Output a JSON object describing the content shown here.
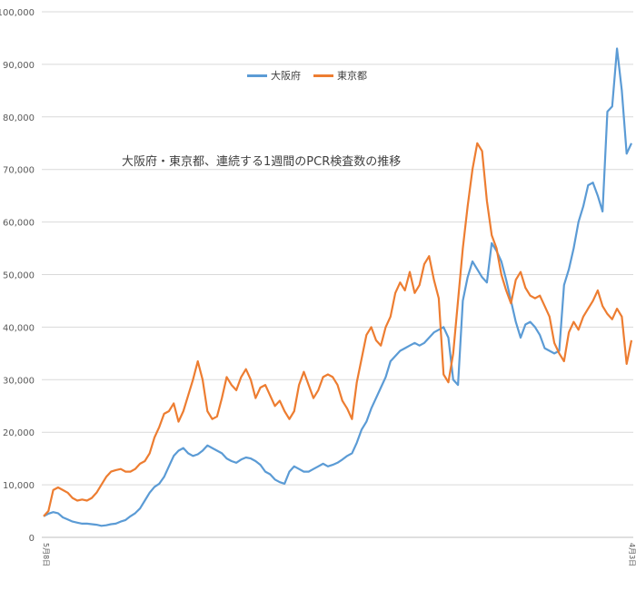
{
  "chart_data": {
    "type": "line",
    "title": "大阪府・東京都、連続する1週間のPCR検査数の推移",
    "xlabel": "",
    "ylabel": "",
    "ylim": [
      0,
      100000
    ],
    "y_ticks": [
      "0",
      "10,000",
      "20,000",
      "30,000",
      "40,000",
      "50,000",
      "60,000",
      "70,000",
      "80,000",
      "90,000",
      "100,000"
    ],
    "x_range": [
      "5月8日",
      "4月3日"
    ],
    "legend": "top-center",
    "grid": true,
    "series": [
      {
        "name": "大阪府",
        "color": "#5B9BD5",
        "values": [
          4000,
          4500,
          4800,
          4600,
          3800,
          3400,
          3000,
          2800,
          2600,
          2600,
          2500,
          2400,
          2200,
          2300,
          2500,
          2600,
          3000,
          3300,
          4000,
          4600,
          5500,
          7000,
          8500,
          9600,
          10200,
          11500,
          13500,
          15500,
          16500,
          17000,
          16000,
          15500,
          15800,
          16500,
          17500,
          17000,
          16500,
          16000,
          15000,
          14500,
          14200,
          14800,
          15200,
          15000,
          14500,
          13800,
          12500,
          12000,
          11000,
          10500,
          10200,
          12500,
          13500,
          13000,
          12500,
          12500,
          13000,
          13500,
          14000,
          13500,
          13800,
          14200,
          14800,
          15500,
          16000,
          18000,
          20500,
          22000,
          24500,
          26500,
          28500,
          30500,
          33500,
          34500,
          35500,
          36000,
          36500,
          37000,
          36500,
          37000,
          38000,
          39000,
          39500,
          40000,
          38000,
          30000,
          29000,
          45000,
          49500,
          52500,
          51000,
          49500,
          48500,
          56000,
          54500,
          52500,
          49000,
          45000,
          41000,
          38000,
          40500,
          41000,
          40000,
          38500,
          36000,
          35500,
          35000,
          35500,
          48000,
          51000,
          55000,
          60000,
          63000,
          67000,
          67500,
          65000,
          62000,
          81000,
          82000,
          93000,
          85000,
          73000,
          75000
        ]
      },
      {
        "name": "東京都",
        "color": "#ED7D31",
        "values": [
          4000,
          5000,
          9000,
          9500,
          9000,
          8500,
          7500,
          7000,
          7200,
          7000,
          7500,
          8500,
          10000,
          11500,
          12500,
          12800,
          13000,
          12500,
          12500,
          13000,
          14000,
          14500,
          16000,
          19000,
          21000,
          23500,
          24000,
          25500,
          22000,
          24000,
          27000,
          30000,
          33500,
          30000,
          24000,
          22500,
          23000,
          26500,
          30500,
          29000,
          28000,
          30500,
          32000,
          30000,
          26500,
          28500,
          29000,
          27000,
          25000,
          26000,
          24000,
          22500,
          24000,
          29000,
          31500,
          29000,
          26500,
          28000,
          30500,
          31000,
          30500,
          29000,
          26000,
          24500,
          22500,
          29500,
          34000,
          38500,
          40000,
          37500,
          36500,
          40000,
          42000,
          46500,
          48500,
          47000,
          50500,
          46500,
          48000,
          52000,
          53500,
          49000,
          45500,
          31000,
          29500,
          35000,
          45000,
          55000,
          63000,
          70000,
          75000,
          73500,
          64000,
          57500,
          55000,
          50000,
          47000,
          44500,
          49000,
          50500,
          47500,
          46000,
          45500,
          46000,
          44000,
          42000,
          37000,
          35000,
          33500,
          39000,
          41000,
          39500,
          42000,
          43500,
          45000,
          47000,
          44000,
          42500,
          41500,
          43500,
          42000,
          33000,
          37500
        ]
      }
    ]
  }
}
